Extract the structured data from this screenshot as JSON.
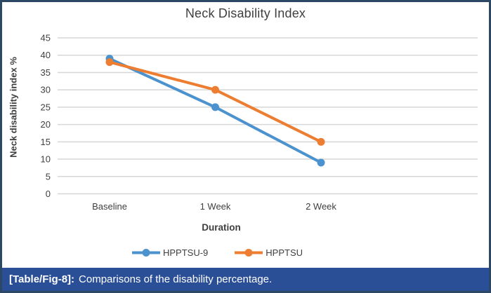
{
  "figure": {
    "caption": {
      "prefix": "[Table/Fig-8]:",
      "text": "Comparisons of the disability percentage."
    }
  },
  "chart_data": {
    "type": "line",
    "title": "Neck Disability Index",
    "xlabel": "Duration",
    "ylabel": "Neck disability index %",
    "categories": [
      "Baseline",
      "1 Week",
      "2 Week"
    ],
    "series": [
      {
        "name": "HPPTSU-9",
        "color": "#4B92CE",
        "values": [
          39,
          25,
          9
        ]
      },
      {
        "name": "HPPTSU",
        "color": "#ED7D31",
        "values": [
          38,
          30,
          15
        ]
      }
    ],
    "ylim": [
      0,
      45
    ],
    "yticks": [
      45,
      40,
      35,
      30,
      25,
      20,
      15,
      10,
      5,
      0
    ],
    "grid": true,
    "legend_position": "bottom",
    "gridline_color": "#D6D6D6",
    "text_color": "#3F3F3F",
    "marker": "circle"
  },
  "colors": {
    "caption_bar": "#2B4F97",
    "caption_text": "#FFFFFF",
    "border": "#2C4865"
  }
}
